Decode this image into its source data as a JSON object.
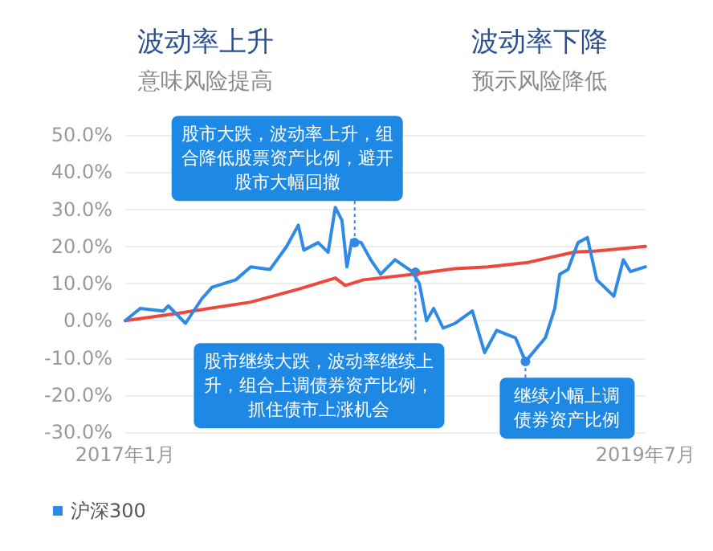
{
  "chart_data": {
    "type": "line",
    "annotations": [
      "波动率上升",
      "意味风险提高",
      "波动率下降",
      "预示风险降低",
      {
        "text": "股市大跌，波动率上升，组合降低股票资产比例，避开股市大幅回撤",
        "x": "2018-02-20",
        "y": 21
      },
      {
        "text": "股市继续大跌，波动率继续上升，组合上调债券资产比例，抓住债市上涨机会",
        "x": "2018-06-10",
        "y": 13
      },
      {
        "text": "继续小幅上调债券资产比例",
        "x": "2018-12-26",
        "y": -11
      }
    ],
    "series": [
      {
        "color": "#f0473c",
        "x": [
          "2017-01-01",
          "2017-04-07",
          "2017-08-16",
          "2017-11-11",
          "2018-01-16",
          "2018-02-03",
          "2018-03-08",
          "2018-06-05",
          "2018-08-20",
          "2018-10-19",
          "2018-12-31",
          "2019-03-25",
          "2019-04-29",
          "2019-07-31"
        ],
        "values": [
          0,
          2,
          5,
          8.5,
          11.5,
          9.5,
          11,
          12.5,
          14,
          14.5,
          15.7,
          18.5,
          18.7,
          20
        ]
      },
      {
        "name": "沪深300",
        "color": "#2f8ae6",
        "x": [
          "2017-01-01",
          "2017-01-28",
          "2017-03-11",
          "2017-03-20",
          "2017-04-20",
          "2017-05-20",
          "2017-06-07",
          "2017-07-20",
          "2017-08-16",
          "2017-09-20",
          "2017-10-20",
          "2017-11-10",
          "2017-11-20",
          "2017-12-16",
          "2018-01-03",
          "2018-01-16",
          "2018-01-28",
          "2018-02-06",
          "2018-02-15",
          "2018-03-04",
          "2018-03-21",
          "2018-04-08",
          "2018-05-04",
          "2018-06-04",
          "2018-06-17",
          "2018-06-30",
          "2018-07-13",
          "2018-07-30",
          "2018-08-21",
          "2018-09-21",
          "2018-10-13",
          "2018-11-04",
          "2018-12-08",
          "2018-12-26",
          "2019-01-31",
          "2019-02-17",
          "2019-02-26",
          "2019-03-13",
          "2019-03-31",
          "2019-04-17",
          "2019-05-04",
          "2019-06-04",
          "2019-06-21",
          "2019-07-04",
          "2019-07-31"
        ],
        "values": [
          0,
          3.3,
          2.6,
          4,
          -0.7,
          6,
          9,
          11,
          14.5,
          13.8,
          20,
          25.7,
          19,
          21,
          18.4,
          30.5,
          27,
          14.5,
          21.7,
          21,
          16.4,
          12.5,
          16.4,
          13.2,
          10,
          0,
          3.3,
          -2,
          -0.7,
          2.6,
          -8.6,
          -2.6,
          -4.6,
          -11,
          -4.6,
          3.3,
          12.5,
          13.8,
          21,
          22.4,
          11,
          6.6,
          16.4,
          13.2,
          14.5
        ]
      }
    ],
    "xlim": [
      "2017-01-01",
      "2019-07-31"
    ],
    "xticks": [
      {
        "value": "2017-01-01",
        "label": "2017年1月"
      },
      {
        "value": "2019-07-31",
        "label": "2019年7月"
      }
    ],
    "ylim": [
      -30,
      50
    ],
    "yticks": [
      {
        "value": -30,
        "label": "-30.0%"
      },
      {
        "value": -20,
        "label": "-20.0%"
      },
      {
        "value": -10,
        "label": "-10.0%"
      },
      {
        "value": 0,
        "label": "0.0%"
      },
      {
        "value": 10,
        "label": "10.0%"
      },
      {
        "value": 20,
        "label": "20.0%"
      },
      {
        "value": 30,
        "label": "30.0%"
      },
      {
        "value": 40,
        "label": "40.0%"
      },
      {
        "value": 50,
        "label": "50.0%"
      }
    ],
    "grid": "y",
    "legend": "bottom left",
    "marker": "none",
    "line_style": "solid"
  }
}
